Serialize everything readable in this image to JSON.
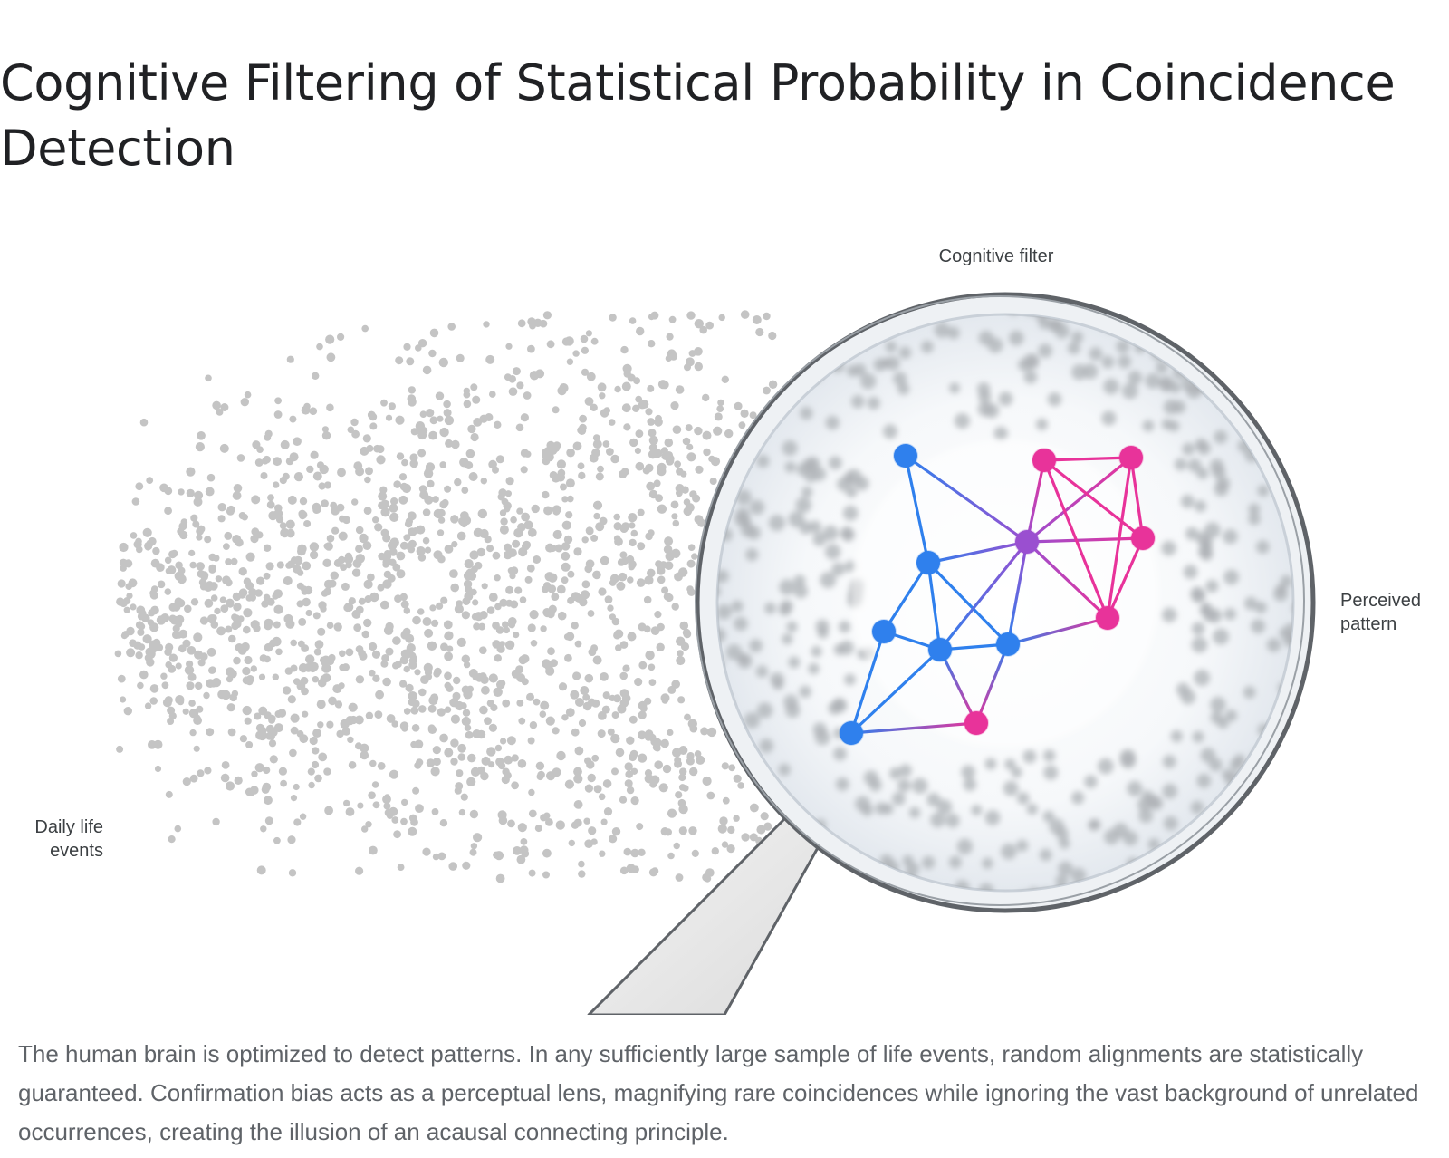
{
  "title": "Cognitive Filtering of Statistical Probability in Coincidence Detection",
  "labels": {
    "left": "Daily life events",
    "top": "Cognitive filter",
    "right": "Perceived pattern"
  },
  "caption": "The human brain is optimized to detect patterns. In any sufficiently large sample of life events, random alignments are statistically guaranteed. Confirmation bias acts as a perceptual lens, magnifying rare coincidences while ignoring the vast background of unrelated occurrences, creating the illusion of an acausal connecting principle.",
  "colors": {
    "dots": "#c4c4c4",
    "blue": "#2f80ed",
    "magenta": "#e8339a",
    "purple": "#9a4fd0",
    "lens_rim": "#5f6368"
  },
  "icons": {
    "lens": "magnifying-glass-icon"
  }
}
